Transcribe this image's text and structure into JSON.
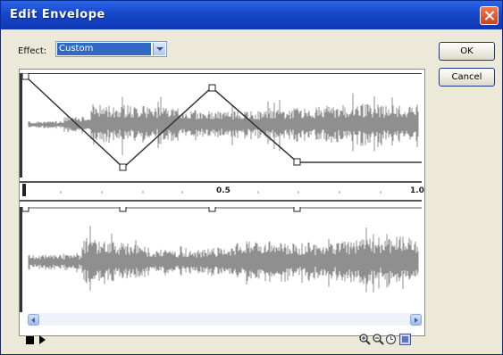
{
  "window": {
    "title": "Edit Envelope"
  },
  "effect": {
    "label": "Effect:",
    "value": "Custom"
  },
  "buttons": {
    "ok": "OK",
    "cancel": "Cancel"
  },
  "ruler": {
    "ticks": [
      "0.5",
      "1.0"
    ]
  },
  "icons": {
    "close": "close-icon",
    "dropdown": "chevron-down-icon",
    "stop": "stop-icon",
    "play": "play-icon",
    "zoom_in": "zoom-in-icon",
    "zoom_out": "zoom-out-icon",
    "seconds": "clock-icon",
    "frames": "frames-icon"
  },
  "colors": {
    "titlebar": "#1747c9",
    "waveform": "#8f8f8f",
    "envelope": "#333333",
    "selection": "#316ac5"
  }
}
